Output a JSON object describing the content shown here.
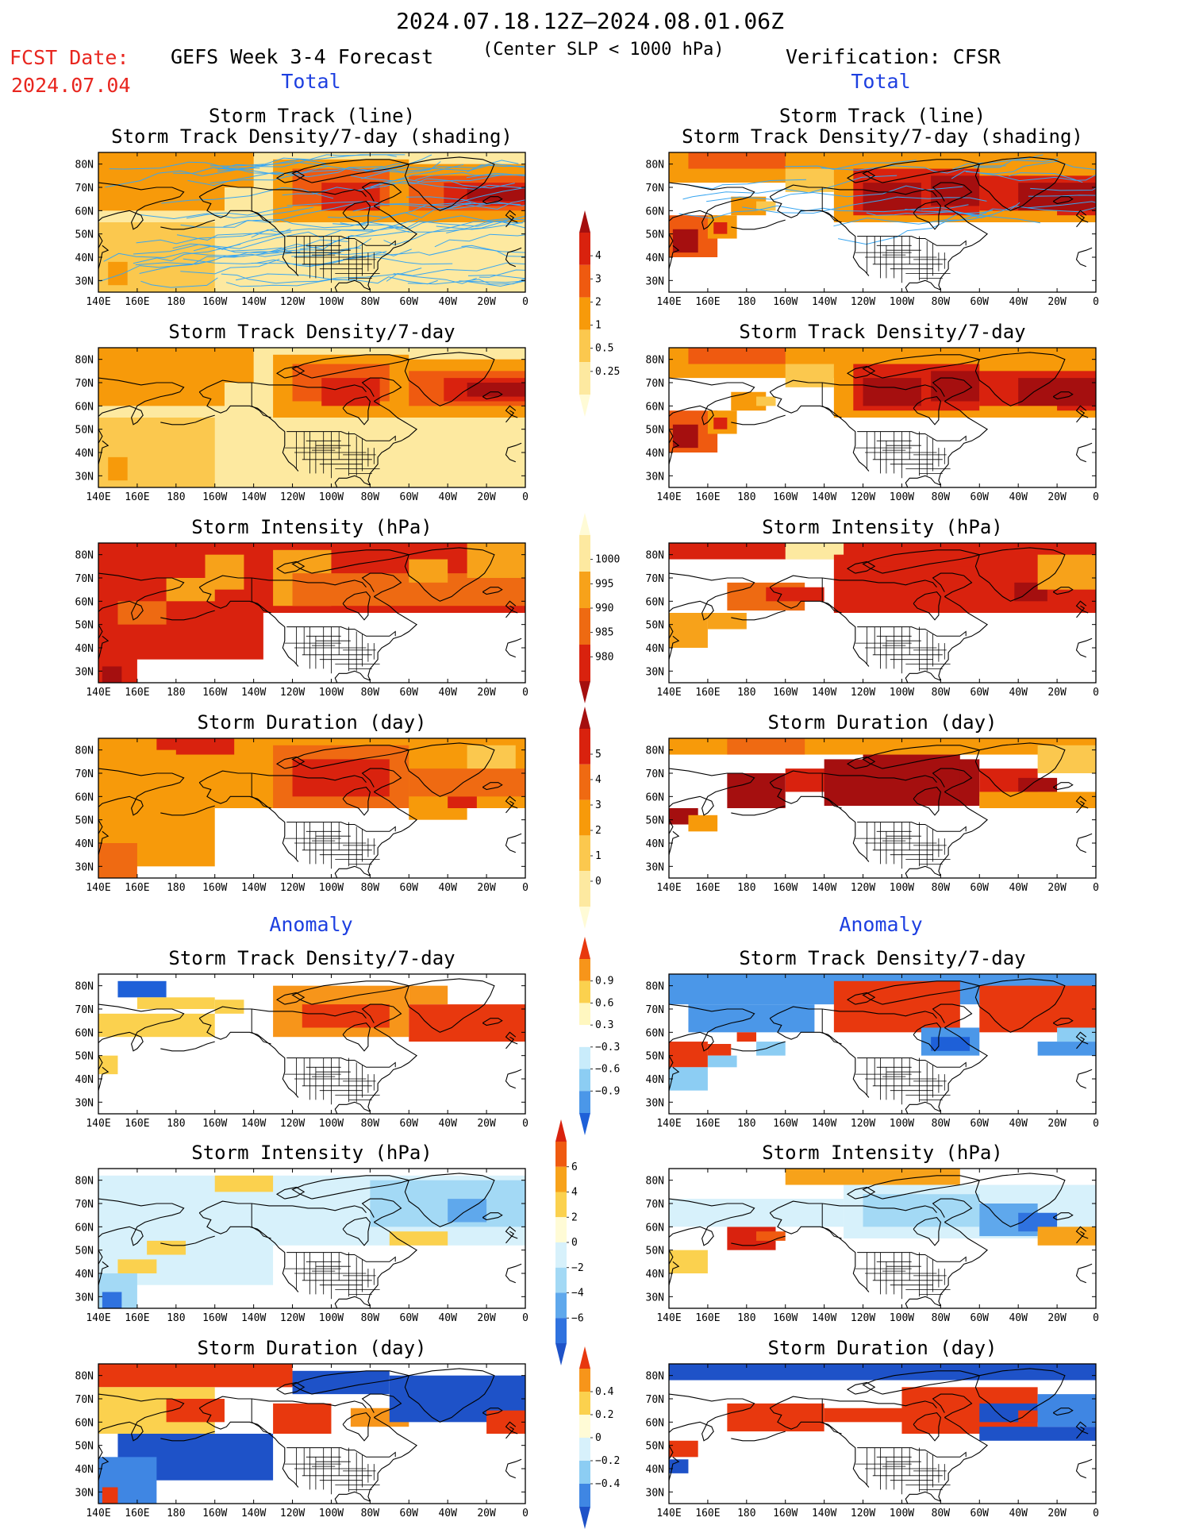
{
  "header": {
    "date_range": "2024.07.18.12Z–2024.08.01.06Z",
    "fcst_label": "FCST Date:",
    "fcst_date": "2024.07.04",
    "left_title": "GEFS Week 3-4 Forecast",
    "sub_title": "(Center SLP < 1000 hPa)",
    "right_title": "Verification: CFSR"
  },
  "sections": {
    "total": "Total",
    "anomaly": "Anomaly"
  },
  "axes": {
    "lon_ticks": [
      "140E",
      "160E",
      "180",
      "160W",
      "140W",
      "120W",
      "100W",
      "80W",
      "60W",
      "40W",
      "20W",
      "0"
    ],
    "lat_ticks": [
      "80N",
      "70N",
      "60N",
      "50N",
      "40N",
      "30N"
    ]
  },
  "panel_titles": {
    "track_line": "Storm Track (line)",
    "track_density_shading": "Storm Track Density/7-day (shading)",
    "track_density": "Storm Track Density/7-day",
    "intensity": "Storm Intensity (hPa)",
    "duration": "Storm Duration (day)"
  },
  "colorbars": {
    "density": {
      "labels": [
        "4",
        "3",
        "2",
        "1",
        "0.5",
        "0.25"
      ],
      "colors": [
        "#a50f0f",
        "#d9220e",
        "#ef5a10",
        "#f79a0a",
        "#fbc84e",
        "#fde9a0",
        "#fffbd6"
      ]
    },
    "intensity": {
      "labels": [
        "1000",
        "995",
        "990",
        "985",
        "980"
      ],
      "colors": [
        "#fffbd6",
        "#fde9a0",
        "#f7a21a",
        "#ee6a12",
        "#d9220e",
        "#a50f0f"
      ]
    },
    "duration": {
      "labels": [
        "5",
        "4",
        "3",
        "2",
        "1",
        "0"
      ],
      "colors": [
        "#a50f0f",
        "#d9220e",
        "#ef6a12",
        "#f79a0a",
        "#fbc84e",
        "#fde9a0",
        "#fffbd6"
      ]
    },
    "density_anom": {
      "labels": [
        "0.9",
        "0.6",
        "0.3",
        "−0.3",
        "−0.6",
        "−0.9"
      ],
      "colors": [
        "#e8380e",
        "#f7951a",
        "#fbd14e",
        "#fff7c0",
        "#ffffff",
        "#c9ecfb",
        "#8ccdf3",
        "#4b97e8",
        "#1e60d8"
      ]
    },
    "intensity_anom": {
      "labels": [
        "6",
        "4",
        "2",
        "0",
        "−2",
        "−4",
        "−6"
      ],
      "colors": [
        "#d9220e",
        "#ef5a10",
        "#f7a21a",
        "#fbd14e",
        "#fffbd6",
        "#d7f1fb",
        "#a3d9f5",
        "#5fa8ec",
        "#2f72df",
        "#1e52c8"
      ]
    },
    "duration_anom": {
      "labels": [
        "0.4",
        "0.2",
        "0",
        "−0.2",
        "−0.4"
      ],
      "colors": [
        "#e8380e",
        "#f7951a",
        "#fbd14e",
        "#fffbd6",
        "#d7f1fb",
        "#8ccdf3",
        "#3f86e3",
        "#1e52c8"
      ]
    }
  },
  "palette": {
    "ocean_bg": "#ffffff",
    "land_line": "#000000",
    "track_line": "#3aa6f0"
  }
}
